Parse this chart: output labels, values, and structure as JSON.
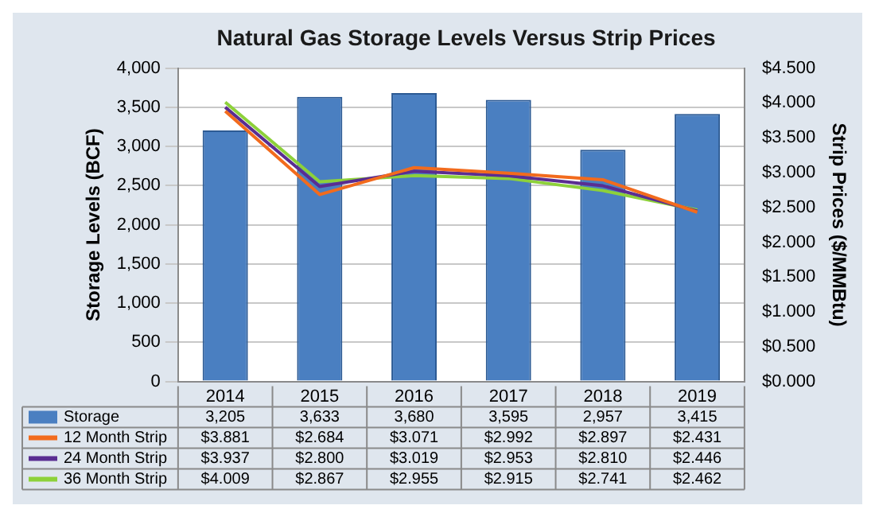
{
  "chart_data": {
    "type": "bar",
    "title": "Natural Gas Storage Levels Versus Strip Prices",
    "ylabel": "Storage Levels (BCF)",
    "y2label": "Strip Prices ($/MMBtu)",
    "categories": [
      "2014",
      "2015",
      "2016",
      "2017",
      "2018",
      "2019"
    ],
    "series": [
      {
        "name": "Storage",
        "color": "#4a7fc1",
        "values": [
          3205,
          3633,
          3680,
          3595,
          2957,
          3415
        ],
        "value_labels": [
          "3,205",
          "3,633",
          "3,680",
          "3,595",
          "2,957",
          "3,415"
        ]
      },
      {
        "name": "12 Month Strip",
        "type": "line",
        "axis": "y2",
        "color": "#f26b1d",
        "values": [
          3.881,
          2.684,
          3.071,
          2.992,
          2.897,
          2.431
        ],
        "value_labels": [
          "$3.881",
          "$2.684",
          "$3.071",
          "$2.992",
          "$2.897",
          "$2.431"
        ]
      },
      {
        "name": "24 Month Strip",
        "type": "line",
        "axis": "y2",
        "color": "#5a2d91",
        "values": [
          3.937,
          2.8,
          3.019,
          2.953,
          2.81,
          2.446
        ],
        "value_labels": [
          "$3.937",
          "$2.800",
          "$3.019",
          "$2.953",
          "$2.810",
          "$2.446"
        ]
      },
      {
        "name": "36 Month Strip",
        "type": "line",
        "axis": "y2",
        "color": "#8dd13a",
        "values": [
          4.009,
          2.867,
          2.955,
          2.915,
          2.741,
          2.462
        ],
        "value_labels": [
          "$4.009",
          "$2.867",
          "$2.955",
          "$2.915",
          "$2.741",
          "$2.462"
        ]
      }
    ],
    "ylim": [
      0,
      4000
    ],
    "yticks": [
      0,
      {
        "value": 500,
        "label": "500"
      },
      {
        "value": 1000,
        "label": "1,000"
      },
      {
        "value": 1500,
        "label": "1,500"
      },
      {
        "value": 2000,
        "label": "2,000"
      },
      {
        "value": 2500,
        "label": "2,500"
      },
      {
        "value": 3000,
        "label": "3,000"
      },
      {
        "value": 3500,
        "label": "3,500"
      },
      {
        "value": 4000,
        "label": "4,000"
      }
    ],
    "y2lim": [
      0,
      4.5
    ],
    "y2ticks": [
      {
        "value": 0,
        "label": "$0.000"
      },
      {
        "value": 0.5,
        "label": "$0.500"
      },
      {
        "value": 1,
        "label": "$1.000"
      },
      {
        "value": 1.5,
        "label": "$1.500"
      },
      {
        "value": 2,
        "label": "$2.000"
      },
      {
        "value": 2.5,
        "label": "$2.500"
      },
      {
        "value": 3,
        "label": "$3.000"
      },
      {
        "value": 3.5,
        "label": "$3.500"
      },
      {
        "value": 4,
        "label": "$4.000"
      },
      {
        "value": 4.5,
        "label": "$4.500"
      }
    ],
    "grid": "y",
    "legend": "bottom",
    "marker": "none",
    "line_style": "solid"
  }
}
